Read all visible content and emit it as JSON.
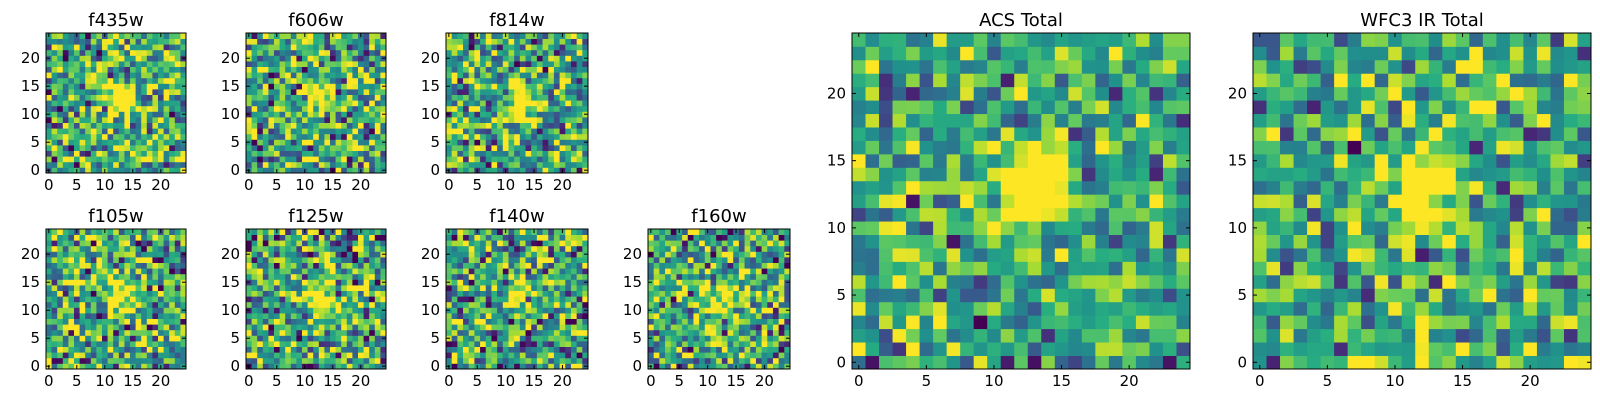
{
  "chart_data": [
    {
      "type": "heatmap",
      "title": "f435w",
      "xlabel": "",
      "ylabel": "",
      "grid_size": 25,
      "xlim": [
        0,
        25
      ],
      "ylim": [
        0,
        25
      ],
      "xticks": [
        0,
        5,
        10,
        15,
        20
      ],
      "yticks": [
        0,
        5,
        10,
        15,
        20
      ],
      "colormap": "viridis",
      "source_peak": [
        13,
        13
      ],
      "source_width": 2.0,
      "source_amplitude": 0.75,
      "noise": 0.55,
      "seed": 11
    },
    {
      "type": "heatmap",
      "title": "f606w",
      "xlabel": "",
      "ylabel": "",
      "grid_size": 25,
      "xlim": [
        0,
        25
      ],
      "ylim": [
        0,
        25
      ],
      "xticks": [
        0,
        5,
        10,
        15,
        20
      ],
      "yticks": [
        0,
        5,
        10,
        15,
        20
      ],
      "colormap": "viridis",
      "source_peak": [
        13,
        13
      ],
      "source_width": 1.8,
      "source_amplitude": 0.75,
      "noise": 0.55,
      "seed": 23
    },
    {
      "type": "heatmap",
      "title": "f814w",
      "xlabel": "",
      "ylabel": "",
      "grid_size": 25,
      "xlim": [
        0,
        25
      ],
      "ylim": [
        0,
        25
      ],
      "xticks": [
        0,
        5,
        10,
        15,
        20
      ],
      "yticks": [
        0,
        5,
        10,
        15,
        20
      ],
      "colormap": "viridis",
      "source_peak": [
        13,
        12
      ],
      "source_width": 1.8,
      "source_amplitude": 0.75,
      "noise": 0.55,
      "seed": 37
    },
    {
      "type": "heatmap",
      "title": "f105w",
      "xlabel": "",
      "ylabel": "",
      "grid_size": 25,
      "xlim": [
        0,
        25
      ],
      "ylim": [
        0,
        25
      ],
      "xticks": [
        0,
        5,
        10,
        15,
        20
      ],
      "yticks": [
        0,
        5,
        10,
        15,
        20
      ],
      "colormap": "viridis",
      "source_peak": [
        13,
        12
      ],
      "source_width": 2.2,
      "source_amplitude": 0.45,
      "noise": 0.55,
      "seed": 41
    },
    {
      "type": "heatmap",
      "title": "f125w",
      "xlabel": "",
      "ylabel": "",
      "grid_size": 25,
      "xlim": [
        0,
        25
      ],
      "ylim": [
        0,
        25
      ],
      "xticks": [
        0,
        5,
        10,
        15,
        20
      ],
      "yticks": [
        0,
        5,
        10,
        15,
        20
      ],
      "colormap": "viridis",
      "source_peak": [
        13,
        12
      ],
      "source_width": 2.2,
      "source_amplitude": 0.45,
      "noise": 0.6,
      "seed": 53
    },
    {
      "type": "heatmap",
      "title": "f140w",
      "xlabel": "",
      "ylabel": "",
      "grid_size": 25,
      "xlim": [
        0,
        25
      ],
      "ylim": [
        0,
        25
      ],
      "xticks": [
        0,
        5,
        10,
        15,
        20
      ],
      "yticks": [
        0,
        5,
        10,
        15,
        20
      ],
      "colormap": "viridis",
      "source_peak": [
        13,
        12
      ],
      "source_width": 2.2,
      "source_amplitude": 0.4,
      "noise": 0.6,
      "seed": 67
    },
    {
      "type": "heatmap",
      "title": "f160w",
      "xlabel": "",
      "ylabel": "",
      "grid_size": 25,
      "xlim": [
        0,
        25
      ],
      "ylim": [
        0,
        25
      ],
      "xticks": [
        0,
        5,
        10,
        15,
        20
      ],
      "yticks": [
        0,
        5,
        10,
        15,
        20
      ],
      "colormap": "viridis",
      "source_peak": [
        13,
        12
      ],
      "source_width": 2.0,
      "source_amplitude": 0.55,
      "noise": 0.55,
      "seed": 79
    },
    {
      "type": "heatmap",
      "title": "ACS Total",
      "xlabel": "",
      "ylabel": "",
      "grid_size": 25,
      "xlim": [
        0,
        25
      ],
      "ylim": [
        0,
        25
      ],
      "xticks": [
        0,
        5,
        10,
        15,
        20
      ],
      "yticks": [
        0,
        5,
        10,
        15,
        20
      ],
      "colormap": "viridis",
      "source_peak": [
        13,
        13
      ],
      "source_width": 1.9,
      "source_amplitude": 0.85,
      "noise": 0.45,
      "seed": 91
    },
    {
      "type": "heatmap",
      "title": "WFC3 IR Total",
      "xlabel": "",
      "ylabel": "",
      "grid_size": 25,
      "xlim": [
        0,
        25
      ],
      "ylim": [
        0,
        25
      ],
      "xticks": [
        0,
        5,
        10,
        15,
        20
      ],
      "yticks": [
        0,
        5,
        10,
        15,
        20
      ],
      "colormap": "viridis",
      "source_peak": [
        12,
        13
      ],
      "source_width": 2.0,
      "source_amplitude": 0.75,
      "noise": 0.45,
      "seed": 103
    }
  ]
}
